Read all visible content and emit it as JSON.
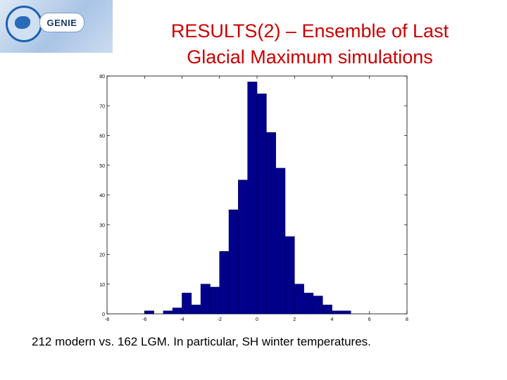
{
  "logo": {
    "text": "GENIE"
  },
  "title": {
    "line1": "RESULTS(2) – Ensemble of Last",
    "line2": "Glacial Maximum simulations"
  },
  "caption": "212 modern vs. 162 LGM.  In particular, SH winter temperatures.",
  "colors": {
    "bar_fill": "#00008b",
    "bar_stroke": "#000055",
    "title": "#cc0000"
  },
  "chart_data": {
    "type": "bar",
    "xlim": [
      -8,
      8
    ],
    "ylim": [
      0,
      80
    ],
    "xticks": [
      -8,
      -6,
      -4,
      -2,
      0,
      2,
      4,
      6,
      8
    ],
    "yticks": [
      0,
      10,
      20,
      30,
      40,
      50,
      60,
      70,
      80
    ],
    "bin_width": 0.5,
    "bins": [
      {
        "x0": -6.0,
        "x1": -5.5,
        "value": 1
      },
      {
        "x0": -5.5,
        "x1": -5.0,
        "value": 0
      },
      {
        "x0": -5.0,
        "x1": -4.5,
        "value": 1
      },
      {
        "x0": -4.5,
        "x1": -4.0,
        "value": 2
      },
      {
        "x0": -4.0,
        "x1": -3.5,
        "value": 7
      },
      {
        "x0": -3.5,
        "x1": -3.0,
        "value": 3
      },
      {
        "x0": -3.0,
        "x1": -2.5,
        "value": 10
      },
      {
        "x0": -2.5,
        "x1": -2.0,
        "value": 9
      },
      {
        "x0": -2.0,
        "x1": -1.5,
        "value": 21
      },
      {
        "x0": -1.5,
        "x1": -1.0,
        "value": 35
      },
      {
        "x0": -1.0,
        "x1": -0.5,
        "value": 45
      },
      {
        "x0": -0.5,
        "x1": 0.0,
        "value": 78
      },
      {
        "x0": 0.0,
        "x1": 0.5,
        "value": 74
      },
      {
        "x0": 0.5,
        "x1": 1.0,
        "value": 61
      },
      {
        "x0": 1.0,
        "x1": 1.5,
        "value": 49
      },
      {
        "x0": 1.5,
        "x1": 2.0,
        "value": 26
      },
      {
        "x0": 2.0,
        "x1": 2.5,
        "value": 10
      },
      {
        "x0": 2.5,
        "x1": 3.0,
        "value": 7
      },
      {
        "x0": 3.0,
        "x1": 3.5,
        "value": 6
      },
      {
        "x0": 3.5,
        "x1": 4.0,
        "value": 3
      },
      {
        "x0": 4.0,
        "x1": 4.5,
        "value": 1
      },
      {
        "x0": 4.5,
        "x1": 5.0,
        "value": 1
      }
    ],
    "grid": false
  }
}
